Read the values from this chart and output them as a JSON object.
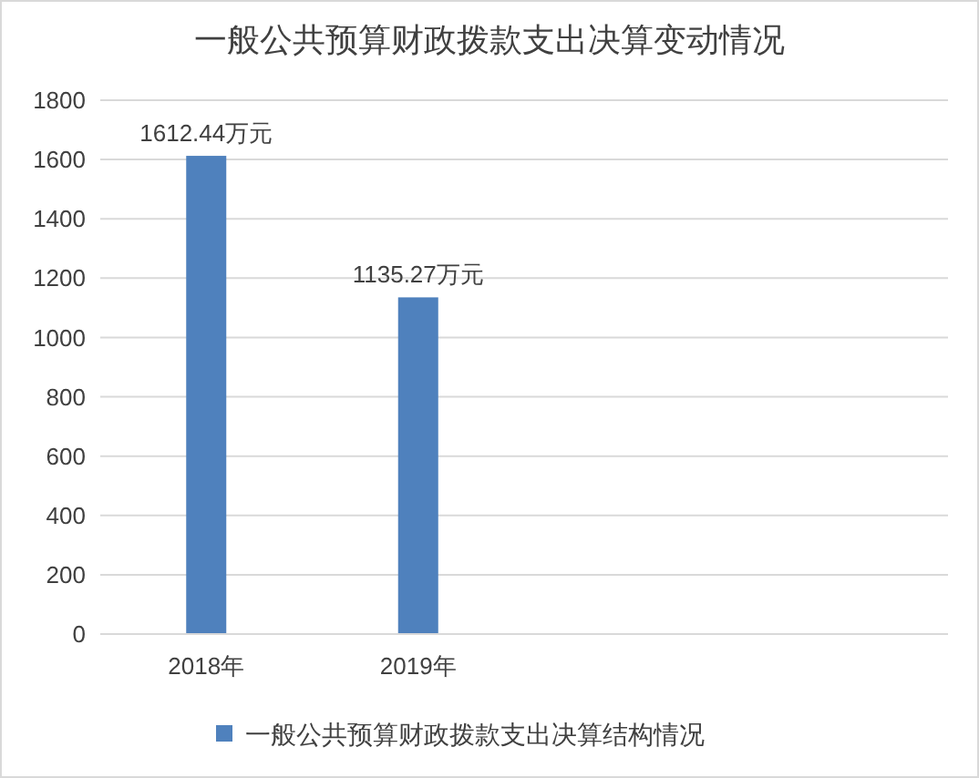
{
  "chart_data": {
    "type": "bar",
    "title": "一般公共预算财政拨款支出决算变动情况",
    "categories": [
      "2018年",
      "2019年",
      null,
      null
    ],
    "series": [
      {
        "name": "一般公共预算财政拨款支出决算结构情况",
        "color": "#4f81bd",
        "values": [
          1612.44,
          1135.27,
          null,
          null
        ],
        "value_labels": [
          "1612.44万元",
          "1135.27万元",
          null,
          null
        ]
      }
    ],
    "ylim": [
      0,
      1800
    ],
    "yticks": [
      0,
      200,
      400,
      600,
      800,
      1000,
      1200,
      1400,
      1600,
      1800
    ],
    "grid": "y",
    "legend": "bottom"
  }
}
